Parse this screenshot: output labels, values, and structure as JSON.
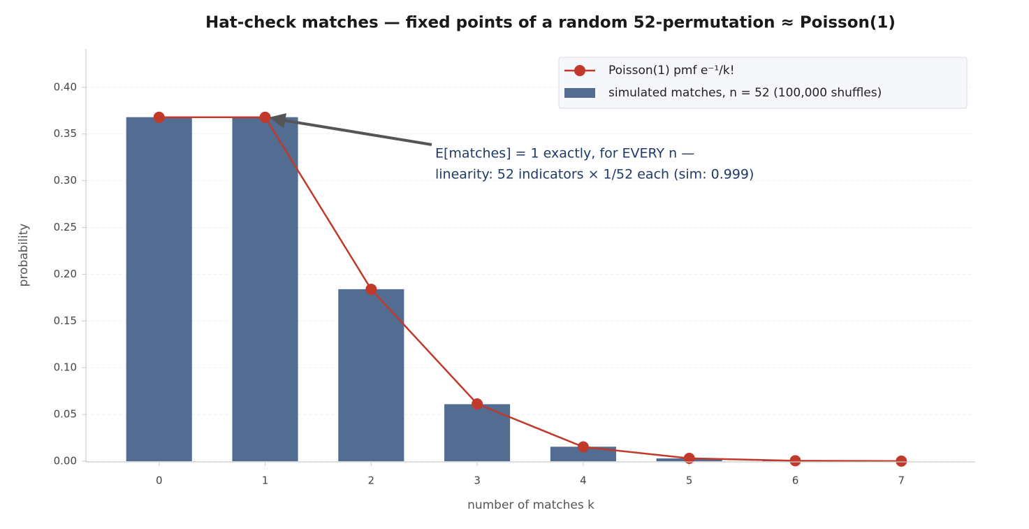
{
  "chart_data": {
    "type": "bar",
    "title": "Hat-check matches — fixed points of a random 52-permutation ≈ Poisson(1)",
    "xlabel": "number of matches k",
    "ylabel": "probability",
    "x": [
      0,
      1,
      2,
      3,
      4,
      5,
      6,
      7
    ],
    "series": [
      {
        "name": "Poisson(1) pmf e⁻¹/k!",
        "type": "line",
        "color": "#c0392b",
        "values": [
          0.3679,
          0.3679,
          0.1839,
          0.0613,
          0.0153,
          0.0031,
          0.0005,
          0.0001
        ]
      },
      {
        "name": "simulated matches, n = 52 (100,000 shuffles)",
        "type": "bar",
        "color": "#526d91",
        "values": [
          0.368,
          0.368,
          0.184,
          0.061,
          0.0155,
          0.003,
          0.0005,
          0
        ]
      }
    ],
    "annotation": [
      "E[matches] = 1 exactly, for EVERY n —",
      "linearity: 52 indicators × 1/52 each  (sim: 0.999)"
    ],
    "xlim": [
      -0.69,
      7.69
    ],
    "xticks": [
      0,
      1,
      2,
      3,
      4,
      5,
      6,
      7
    ],
    "ylim": [
      0,
      0.441
    ],
    "yticks": [
      {
        "value": 0,
        "label": "0.00"
      },
      0.05,
      {
        "value": 0.1,
        "label": "0.10"
      },
      0.15,
      {
        "value": 0.2,
        "label": "0.20"
      },
      0.25,
      {
        "value": 0.3,
        "label": "0.30"
      },
      0.35,
      {
        "value": 0.4,
        "label": "0.40"
      }
    ],
    "grid": true,
    "legend": "upper right"
  }
}
